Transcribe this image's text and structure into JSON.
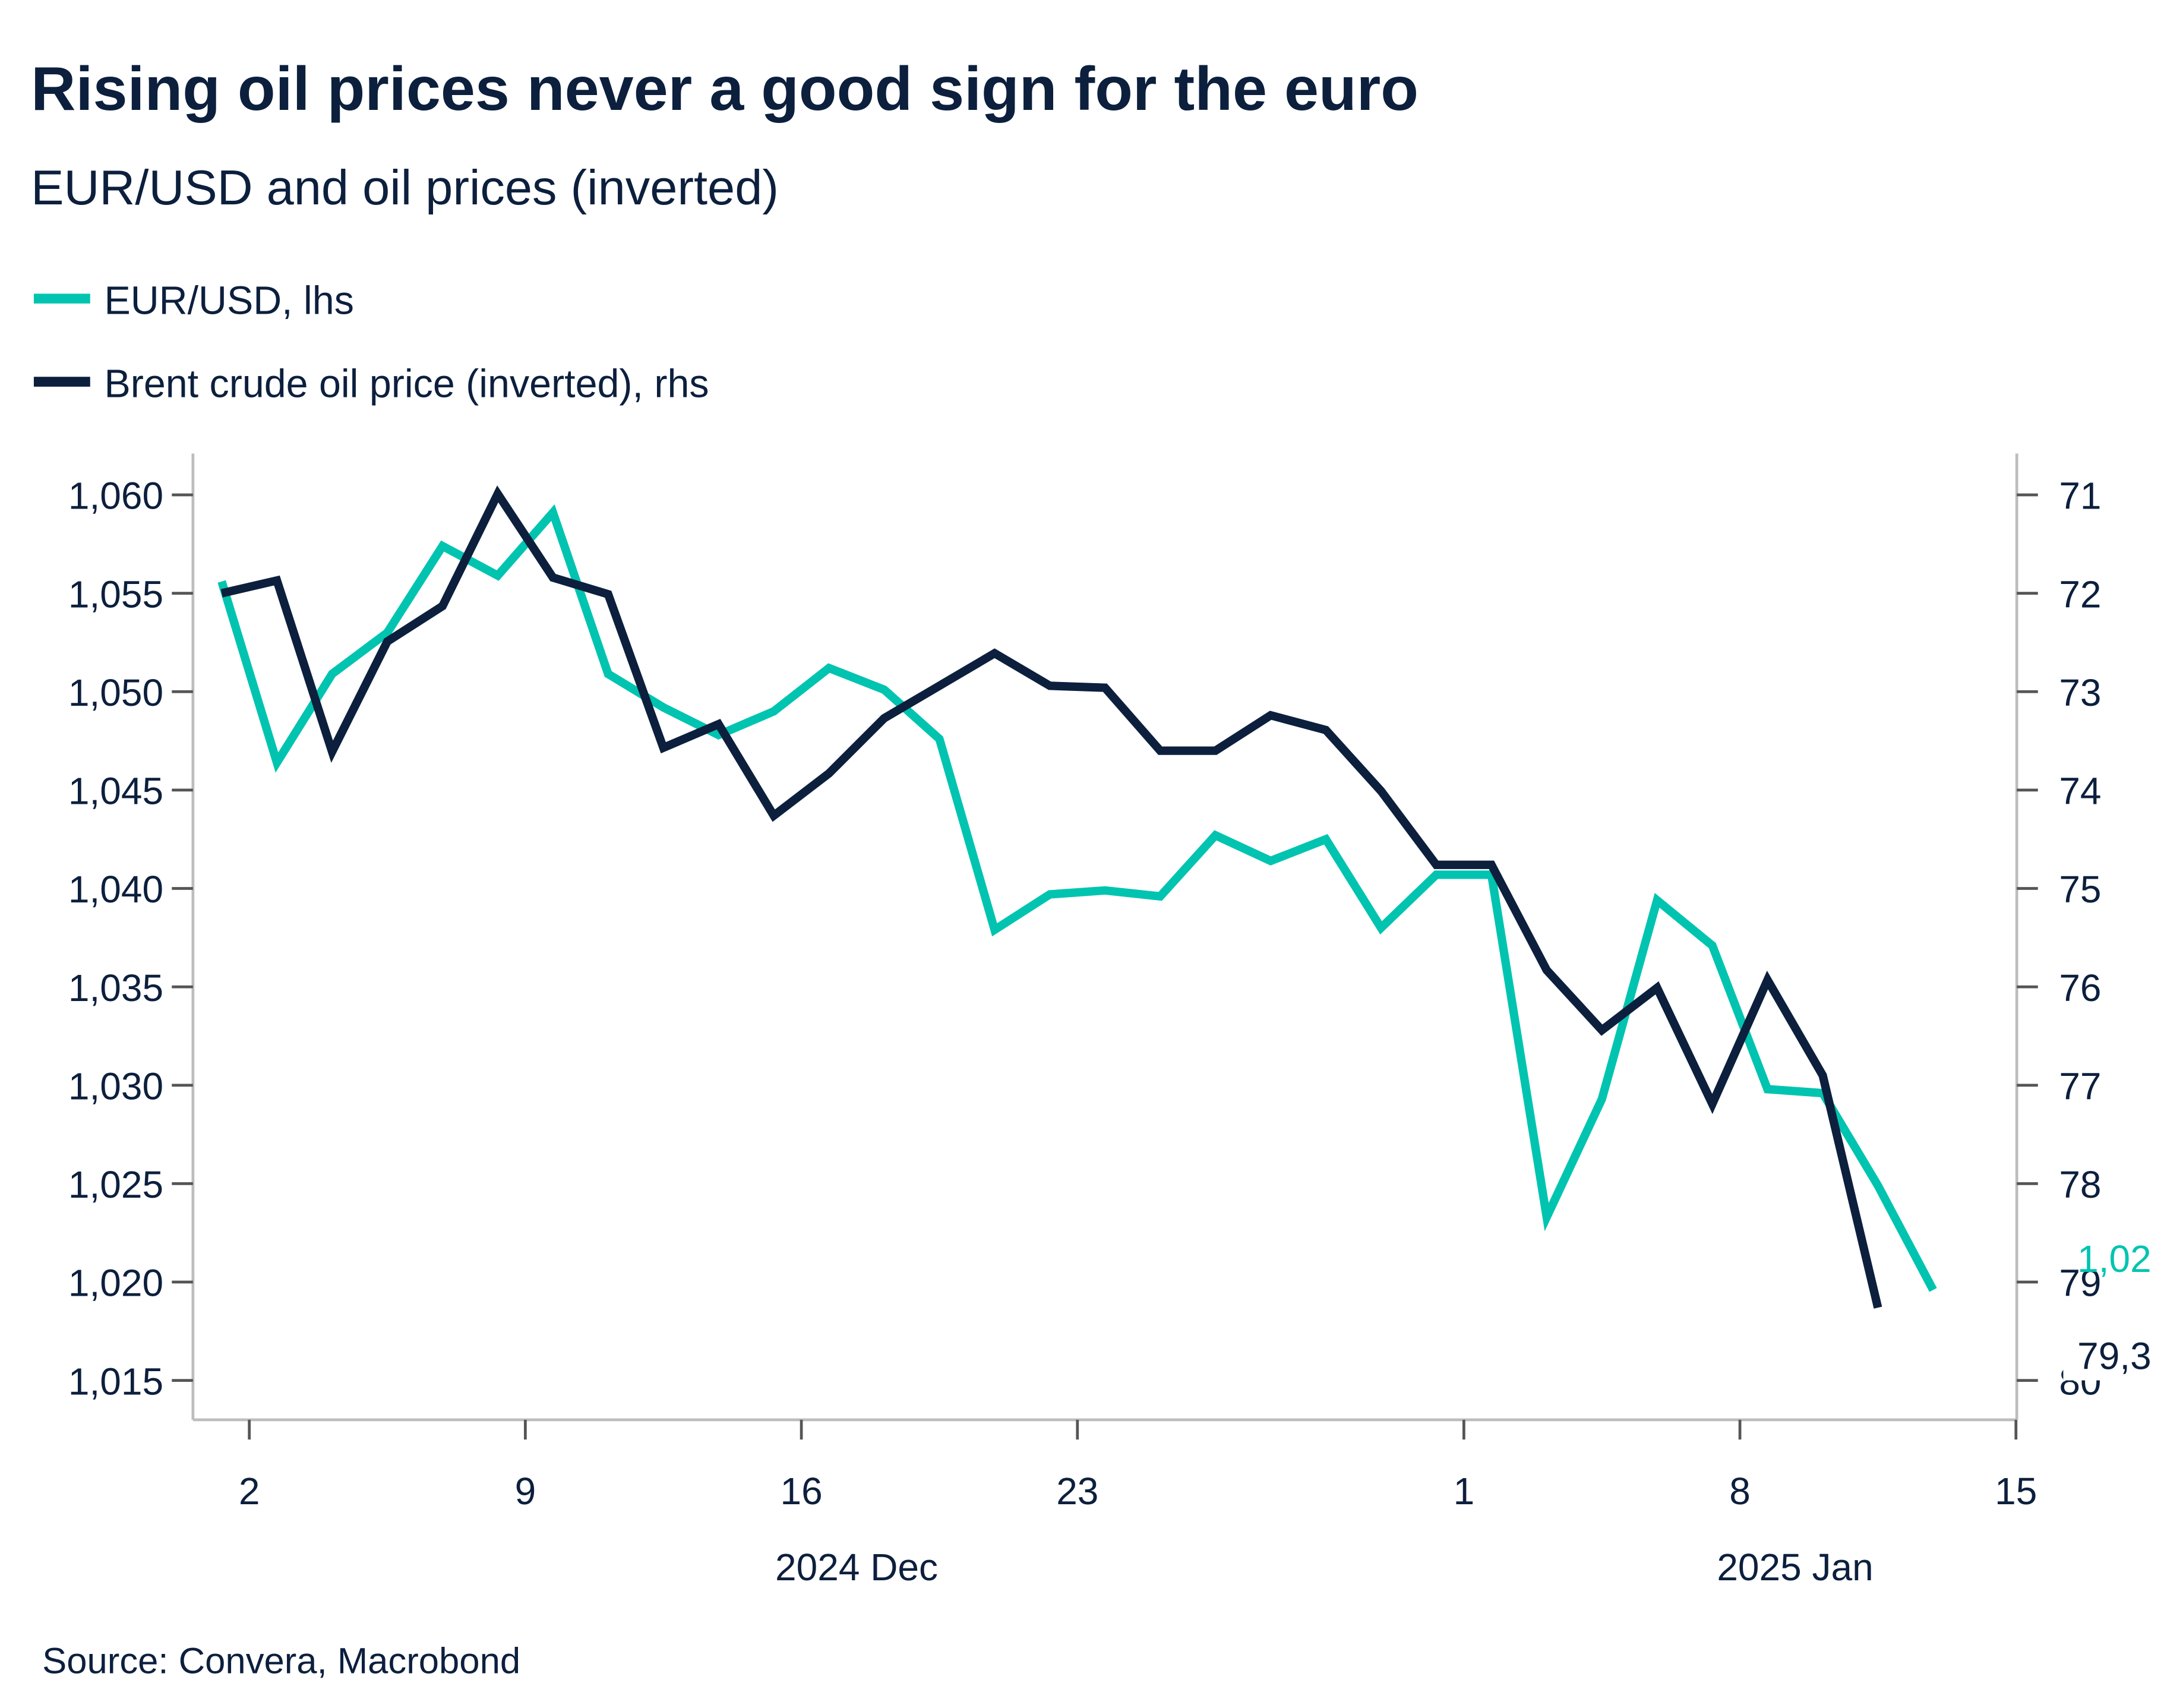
{
  "title": "Rising oil prices never a good sign for the euro",
  "subtitle": "EUR/USD and oil prices (inverted)",
  "source": "Source: Convera, Macrobond",
  "colors": {
    "eurusd": "#00c4b0",
    "brent": "#0c1f3d",
    "text": "#0c1f3d",
    "axis": "#bdbdbd"
  },
  "chart_data": {
    "type": "line",
    "legend": [
      {
        "label": "EUR/USD, lhs",
        "color": "#00c4b0"
      },
      {
        "label": "Brent crude oil price (inverted), rhs",
        "color": "#0c1f3d"
      }
    ],
    "legend_placement": "top-left",
    "x": [
      "2024-11-29",
      "2024-12-02",
      "2024-12-03",
      "2024-12-04",
      "2024-12-05",
      "2024-12-06",
      "2024-12-09",
      "2024-12-10",
      "2024-12-11",
      "2024-12-12",
      "2024-12-13",
      "2024-12-16",
      "2024-12-17",
      "2024-12-18",
      "2024-12-19",
      "2024-12-20",
      "2024-12-23",
      "2024-12-24",
      "2024-12-25",
      "2024-12-26",
      "2024-12-27",
      "2024-12-30",
      "2024-12-31",
      "2025-01-01",
      "2025-01-02",
      "2025-01-03",
      "2025-01-06",
      "2025-01-07",
      "2025-01-08",
      "2025-01-09",
      "2025-01-10",
      "2025-01-13"
    ],
    "series": [
      {
        "name": "EUR/USD, lhs",
        "axis": "left",
        "values": [
          1.0556,
          1.0464,
          1.0509,
          1.053,
          1.0574,
          1.0559,
          1.0591,
          1.0509,
          1.0492,
          1.0478,
          1.049,
          1.0512,
          1.0501,
          1.0476,
          1.0379,
          1.0397,
          1.0399,
          1.0396,
          1.0427,
          1.0414,
          1.0425,
          1.038,
          1.0407,
          1.0407,
          1.0233,
          1.0293,
          1.0394,
          1.0371,
          1.0298,
          1.0296,
          1.0249,
          1.0196
        ],
        "end_label": "1,02"
      },
      {
        "name": "Brent crude oil price (inverted), rhs",
        "axis": "right",
        "values": [
          72.0,
          71.87,
          73.61,
          72.49,
          72.13,
          70.99,
          71.84,
          72.01,
          73.57,
          73.33,
          74.26,
          73.83,
          73.27,
          72.94,
          72.61,
          72.94,
          72.96,
          73.6,
          73.6,
          73.24,
          73.39,
          74.01,
          74.76,
          74.76,
          75.83,
          76.44,
          76.01,
          77.19,
          75.93,
          76.9,
          79.26,
          null
        ],
        "end_label": "79,3"
      }
    ],
    "y_left": {
      "range": [
        1.013,
        1.0621
      ],
      "ticks": [
        1.06,
        1.055,
        1.05,
        1.045,
        1.04,
        1.035,
        1.03,
        1.025,
        1.02,
        1.015
      ],
      "tick_labels": [
        "1,060",
        "1,055",
        "1,050",
        "1,045",
        "1,040",
        "1,035",
        "1,030",
        "1,025",
        "1,020",
        "1,015"
      ]
    },
    "y_right": {
      "range": [
        70.58,
        80.4
      ],
      "inverted": true,
      "ticks": [
        71,
        72,
        73,
        74,
        75,
        76,
        77,
        78,
        79,
        80
      ],
      "tick_labels": [
        "71",
        "72",
        "73",
        "74",
        "75",
        "76",
        "77",
        "78",
        "79",
        "80"
      ]
    },
    "x_axis": {
      "scale": "business days",
      "ticks": [
        "2024-12-02",
        "2024-12-09",
        "2024-12-16",
        "2024-12-23",
        "2025-01-01",
        "2025-01-08",
        "2025-01-15"
      ],
      "tick_labels": [
        "2",
        "9",
        "16",
        "23",
        "1",
        "8",
        "15"
      ],
      "period_labels": [
        {
          "label": "2024 Dec",
          "center": "2024-12-16"
        },
        {
          "label": "2025 Jan",
          "center": "2025-01-08"
        }
      ]
    },
    "grid": false
  }
}
